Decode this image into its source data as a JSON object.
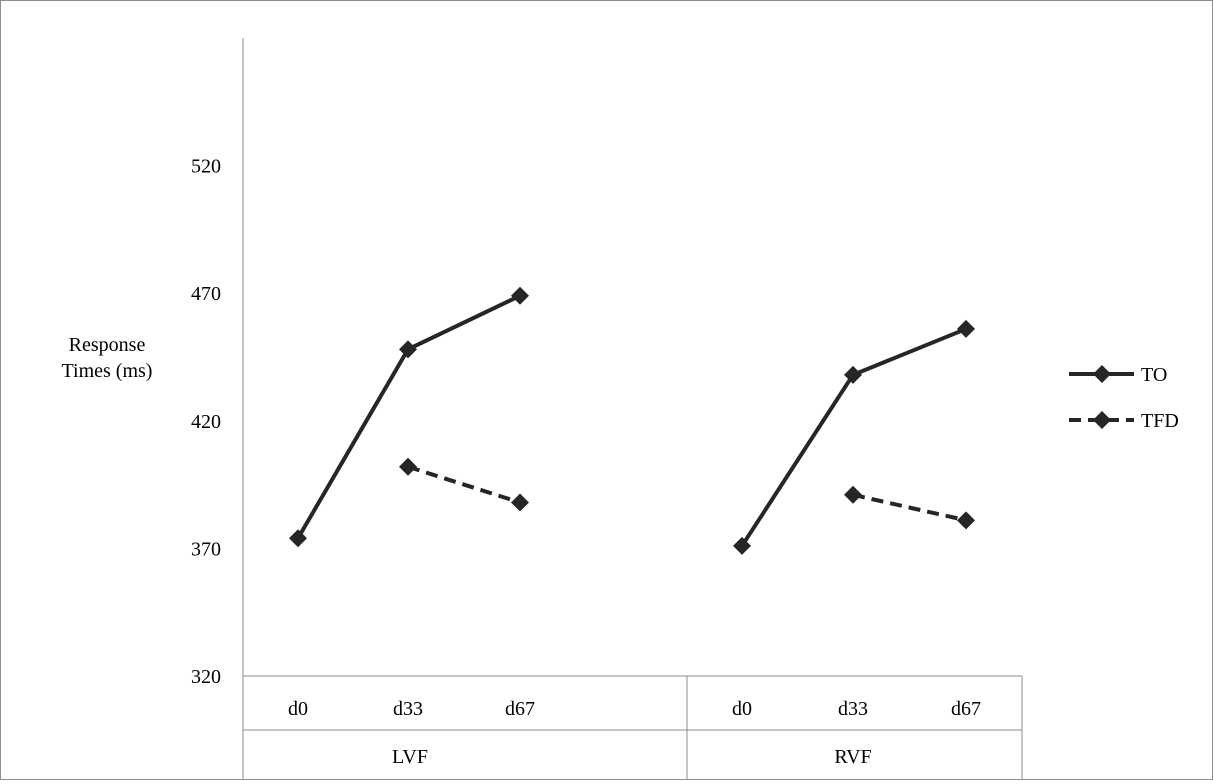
{
  "chart_data": {
    "type": "line",
    "ylabel": [
      "Response",
      "Times (ms)"
    ],
    "ylim": [
      320,
      570
    ],
    "yticks": [
      320,
      370,
      420,
      470,
      520
    ],
    "grid": false,
    "legend_position": "right",
    "groups": [
      {
        "label": "LVF",
        "categories": [
          "d0",
          "d33",
          "d67"
        ]
      },
      {
        "label": "RVF",
        "categories": [
          "d0",
          "d33",
          "d67"
        ]
      }
    ],
    "series": [
      {
        "name": "TO",
        "style": "solid",
        "color": "#262626",
        "values": [
          [
            374,
            448,
            469
          ],
          [
            371,
            438,
            456
          ]
        ]
      },
      {
        "name": "TFD",
        "style": "dashed",
        "color": "#262626",
        "values": [
          [
            null,
            402,
            388
          ],
          [
            null,
            391,
            381
          ]
        ]
      }
    ]
  }
}
